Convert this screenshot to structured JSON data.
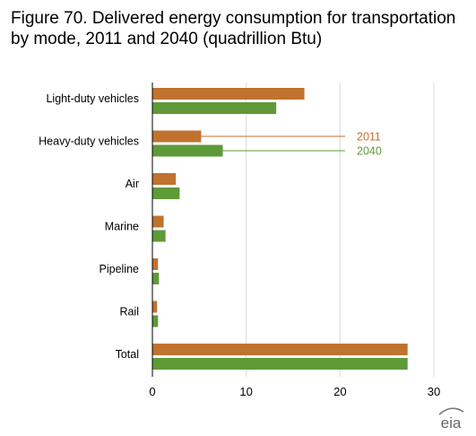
{
  "title": "Figure 70. Delivered energy consumption for transportation by mode, 2011 and 2040 (quadrillion Btu)",
  "logo_text": "eia",
  "colors": {
    "s2011": "#c0722f",
    "s2040": "#5e9a38",
    "grid": "#d9d9d9",
    "axis": "#000000",
    "text": "#000000"
  },
  "chart_data": {
    "type": "bar",
    "orientation": "horizontal",
    "title": "Figure 70. Delivered energy consumption for transportation by mode, 2011 and 2040 (quadrillion Btu)",
    "categories": [
      "Light-duty vehicles",
      "Heavy-duty vehicles",
      "Air",
      "Marine",
      "Pipeline",
      "Rail",
      "Total"
    ],
    "series": [
      {
        "name": "2011",
        "values": [
          16.2,
          5.2,
          2.5,
          1.2,
          0.6,
          0.5,
          27.2
        ]
      },
      {
        "name": "2040",
        "values": [
          13.2,
          7.5,
          2.9,
          1.4,
          0.7,
          0.6,
          27.2
        ]
      }
    ],
    "xlim": [
      0,
      30
    ],
    "xticks": [
      "0",
      "10",
      "20",
      "30"
    ],
    "grid": "vertical",
    "legend": "inline-annotation"
  }
}
